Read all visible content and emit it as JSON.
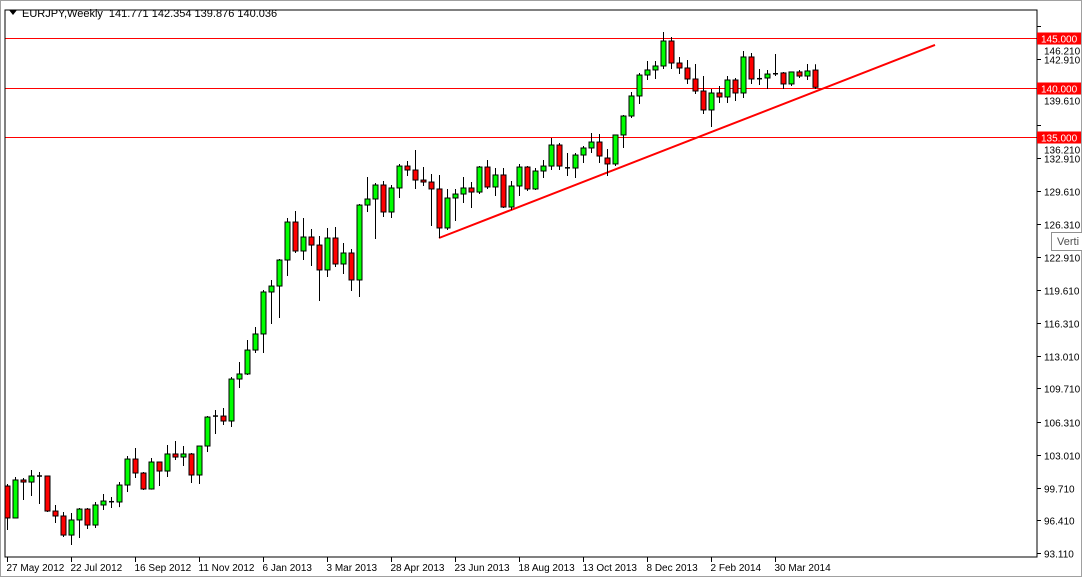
{
  "header": {
    "symbol": "EURJPY,Weekly",
    "ohlc": "141.771 142.354 139.876 140.036"
  },
  "tooltip": {
    "text": "Verti"
  },
  "colors": {
    "bull": "#00ff00",
    "bear": "#ff0000",
    "level_line": "#ff0000",
    "trendline": "#ff0000",
    "label_bg": "#ff0000",
    "label_text": "#ffffff"
  },
  "chart_data": {
    "type": "candlestick",
    "symbol": "EURJPY",
    "timeframe": "Weekly",
    "ylim": [
      93.11,
      146.21
    ],
    "y_ticks": [
      "146.210",
      "142.910",
      "139.610",
      "136.210",
      "132.910",
      "129.610",
      "126.310",
      "122.910",
      "119.610",
      "116.310",
      "113.010",
      "109.710",
      "106.310",
      "103.010",
      "99.710",
      "96.410",
      "93.110"
    ],
    "x_ticks": [
      {
        "label": "27 May 2012",
        "index": 0
      },
      {
        "label": "22 Jul 2012",
        "index": 8
      },
      {
        "label": "16 Sep 2012",
        "index": 16
      },
      {
        "label": "11 Nov 2012",
        "index": 24
      },
      {
        "label": "6 Jan 2013",
        "index": 32
      },
      {
        "label": "3 Mar 2013",
        "index": 40
      },
      {
        "label": "28 Apr 2013",
        "index": 48
      },
      {
        "label": "23 Jun 2013",
        "index": 56
      },
      {
        "label": "18 Aug 2013",
        "index": 64
      },
      {
        "label": "13 Oct 2013",
        "index": 72
      },
      {
        "label": "8 Dec 2013",
        "index": 80
      },
      {
        "label": "2 Feb 2014",
        "index": 88
      },
      {
        "label": "30 Mar 2014",
        "index": 96
      }
    ],
    "horizontal_levels": [
      {
        "price": 145.0,
        "label": "145.000"
      },
      {
        "price": 140.0,
        "label": "140.000"
      },
      {
        "price": 135.0,
        "label": "135.000"
      }
    ],
    "trendline": {
      "from": {
        "index": 54,
        "price": 124.85
      },
      "to": {
        "index": 116,
        "price": 144.3
      }
    },
    "candles_ohlc": [
      [
        99.86,
        100.06,
        95.43,
        96.64
      ],
      [
        96.64,
        100.77,
        96.64,
        100.47
      ],
      [
        100.47,
        100.67,
        98.45,
        100.26
      ],
      [
        100.26,
        101.47,
        98.85,
        100.87
      ],
      [
        100.87,
        101.27,
        98.05,
        100.82
      ],
      [
        100.87,
        100.9,
        97.24,
        97.34
      ],
      [
        97.34,
        97.95,
        96.13,
        96.84
      ],
      [
        96.84,
        97.24,
        94.72,
        94.92
      ],
      [
        94.92,
        97.14,
        93.92,
        96.44
      ],
      [
        96.44,
        97.64,
        94.62,
        97.54
      ],
      [
        97.54,
        97.64,
        95.53,
        95.93
      ],
      [
        95.93,
        98.25,
        95.63,
        97.95
      ],
      [
        97.95,
        99.06,
        97.44,
        98.35
      ],
      [
        98.25,
        98.75,
        97.64,
        98.28
      ],
      [
        98.25,
        100.26,
        97.74,
        99.96
      ],
      [
        99.96,
        102.88,
        99.26,
        102.58
      ],
      [
        102.58,
        103.69,
        100.67,
        101.17
      ],
      [
        101.17,
        101.27,
        99.46,
        99.56
      ],
      [
        99.56,
        102.68,
        99.5,
        102.28
      ],
      [
        102.28,
        102.28,
        99.86,
        101.37
      ],
      [
        101.37,
        103.99,
        100.77,
        103.09
      ],
      [
        103.09,
        104.4,
        102.48,
        102.78
      ],
      [
        102.78,
        103.89,
        101.88,
        103.09
      ],
      [
        103.09,
        103.19,
        100.16,
        100.97
      ],
      [
        100.97,
        103.89,
        100.06,
        103.89
      ],
      [
        103.89,
        106.91,
        103.29,
        106.81
      ],
      [
        106.91,
        107.52,
        105.1,
        106.86
      ],
      [
        106.91,
        107.72,
        106.01,
        106.41
      ],
      [
        106.41,
        110.84,
        105.81,
        110.64
      ],
      [
        110.64,
        112.36,
        109.74,
        111.15
      ],
      [
        111.15,
        114.57,
        111.05,
        113.56
      ],
      [
        113.56,
        115.88,
        113.26,
        115.18
      ],
      [
        115.18,
        119.61,
        113.26,
        119.41
      ],
      [
        119.41,
        120.62,
        116.18,
        120.01
      ],
      [
        120.01,
        122.73,
        116.79,
        122.63
      ],
      [
        122.63,
        126.87,
        121.02,
        126.46
      ],
      [
        126.46,
        127.57,
        123.34,
        123.54
      ],
      [
        123.54,
        126.87,
        122.63,
        124.95
      ],
      [
        124.95,
        125.76,
        122.03,
        124.14
      ],
      [
        124.14,
        125.05,
        118.5,
        121.63
      ],
      [
        121.63,
        125.86,
        120.92,
        124.85
      ],
      [
        124.85,
        125.96,
        121.93,
        122.23
      ],
      [
        122.23,
        124.35,
        121.22,
        123.34
      ],
      [
        123.34,
        123.74,
        119.51,
        120.62
      ],
      [
        120.62,
        128.28,
        118.91,
        128.17
      ],
      [
        128.17,
        131.0,
        127.47,
        128.78
      ],
      [
        128.78,
        130.39,
        124.75,
        130.19
      ],
      [
        130.19,
        130.59,
        126.97,
        127.47
      ],
      [
        127.47,
        130.19,
        126.87,
        129.89
      ],
      [
        129.89,
        132.31,
        128.88,
        132.1
      ],
      [
        132.1,
        132.61,
        131.1,
        131.7
      ],
      [
        131.7,
        133.72,
        129.79,
        130.69
      ],
      [
        130.69,
        132.0,
        130.09,
        130.49
      ],
      [
        130.49,
        131.3,
        126.06,
        129.79
      ],
      [
        129.79,
        131.2,
        124.85,
        125.86
      ],
      [
        125.86,
        129.79,
        125.66,
        128.88
      ],
      [
        128.88,
        129.79,
        126.56,
        129.28
      ],
      [
        129.28,
        131.0,
        128.38,
        129.89
      ],
      [
        129.89,
        130.49,
        127.87,
        129.48
      ],
      [
        129.48,
        132.1,
        129.28,
        132.0
      ],
      [
        132.0,
        132.71,
        129.79,
        129.99
      ],
      [
        129.99,
        131.9,
        129.08,
        131.2
      ],
      [
        131.2,
        131.9,
        127.87,
        127.97
      ],
      [
        127.97,
        130.59,
        127.67,
        130.09
      ],
      [
        130.09,
        132.31,
        129.08,
        132.0
      ],
      [
        132.0,
        132.1,
        129.58,
        129.79
      ],
      [
        129.79,
        131.9,
        129.69,
        131.6
      ],
      [
        131.6,
        132.71,
        130.9,
        132.1
      ],
      [
        132.1,
        134.93,
        131.7,
        134.22
      ],
      [
        134.22,
        134.42,
        131.7,
        132.1
      ],
      [
        131.9,
        133.41,
        131.1,
        131.92
      ],
      [
        131.9,
        133.41,
        130.9,
        133.21
      ],
      [
        133.21,
        134.12,
        132.41,
        133.92
      ],
      [
        133.92,
        135.43,
        133.41,
        134.52
      ],
      [
        134.52,
        135.33,
        132.41,
        133.11
      ],
      [
        132.91,
        133.82,
        131.1,
        132.31
      ],
      [
        132.31,
        135.23,
        132.1,
        135.23
      ],
      [
        135.23,
        137.24,
        133.92,
        137.14
      ],
      [
        137.14,
        139.56,
        136.94,
        139.16
      ],
      [
        139.16,
        141.48,
        138.35,
        141.27
      ],
      [
        141.27,
        142.68,
        140.77,
        141.78
      ],
      [
        141.78,
        142.68,
        140.87,
        142.18
      ],
      [
        142.18,
        145.61,
        141.88,
        144.7
      ],
      [
        144.7,
        145.1,
        141.88,
        142.48
      ],
      [
        142.48,
        143.09,
        141.37,
        141.98
      ],
      [
        141.98,
        142.78,
        140.37,
        140.87
      ],
      [
        140.87,
        142.38,
        139.36,
        139.66
      ],
      [
        139.66,
        141.17,
        137.34,
        137.75
      ],
      [
        137.75,
        139.86,
        136.03,
        139.46
      ],
      [
        139.46,
        140.16,
        138.45,
        139.06
      ],
      [
        139.06,
        141.17,
        138.45,
        140.77
      ],
      [
        140.77,
        140.97,
        138.65,
        139.46
      ],
      [
        139.46,
        143.69,
        138.96,
        143.09
      ],
      [
        143.09,
        143.49,
        140.37,
        140.87
      ],
      [
        140.87,
        141.88,
        140.27,
        140.9
      ],
      [
        140.97,
        141.78,
        139.86,
        141.37
      ],
      [
        141.37,
        143.39,
        141.17,
        141.4
      ],
      [
        141.48,
        141.58,
        139.86,
        140.37
      ],
      [
        140.37,
        141.58,
        140.16,
        141.58
      ],
      [
        141.58,
        141.78,
        140.97,
        141.17
      ],
      [
        141.17,
        142.38,
        140.77,
        141.68
      ],
      [
        141.771,
        142.354,
        139.876,
        140.036
      ]
    ]
  }
}
